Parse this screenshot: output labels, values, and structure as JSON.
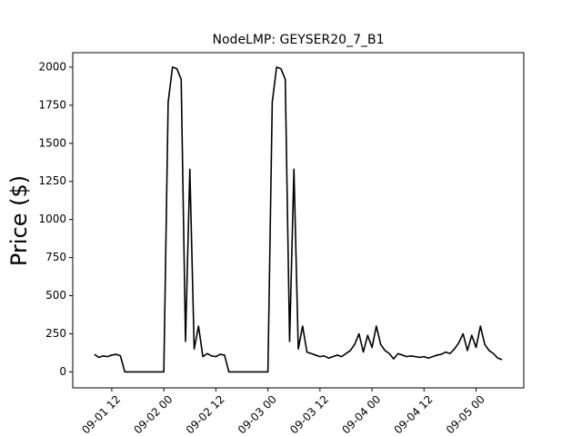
{
  "chart_data": {
    "type": "line",
    "title": "NodeLMP: GEYSER20_7_B1",
    "ylabel": "Price ($)",
    "x": [
      "09-01 08",
      "09-01 09",
      "09-01 10",
      "09-01 11",
      "09-01 12",
      "09-01 13",
      "09-01 14",
      "09-01 15",
      "09-01 16",
      "09-01 17",
      "09-01 18",
      "09-01 19",
      "09-01 20",
      "09-01 21",
      "09-01 22",
      "09-01 23",
      "09-02 00",
      "09-02 01",
      "09-02 02",
      "09-02 03",
      "09-02 04",
      "09-02 05",
      "09-02 06",
      "09-02 07",
      "09-02 08",
      "09-02 09",
      "09-02 10",
      "09-02 11",
      "09-02 12",
      "09-02 13",
      "09-02 14",
      "09-02 15",
      "09-02 16",
      "09-02 17",
      "09-02 18",
      "09-02 19",
      "09-02 20",
      "09-02 21",
      "09-02 22",
      "09-02 23",
      "09-03 00",
      "09-03 01",
      "09-03 02",
      "09-03 03",
      "09-03 04",
      "09-03 05",
      "09-03 06",
      "09-03 07",
      "09-03 08",
      "09-03 09",
      "09-03 10",
      "09-03 11",
      "09-03 12",
      "09-03 13",
      "09-03 14",
      "09-03 15",
      "09-03 16",
      "09-03 17",
      "09-03 18",
      "09-03 19",
      "09-03 20",
      "09-03 21",
      "09-03 22",
      "09-03 23",
      "09-04 00",
      "09-04 01",
      "09-04 02",
      "09-04 03",
      "09-04 04",
      "09-04 05",
      "09-04 06",
      "09-04 07",
      "09-04 08",
      "09-04 09",
      "09-04 10",
      "09-04 11",
      "09-04 12",
      "09-04 13",
      "09-04 14",
      "09-04 15",
      "09-04 16",
      "09-04 17",
      "09-04 18",
      "09-04 19",
      "09-04 20",
      "09-04 21",
      "09-04 22",
      "09-04 23",
      "09-05 00",
      "09-05 01",
      "09-05 02",
      "09-05 03",
      "09-05 04",
      "09-05 05",
      "09-05 06"
    ],
    "series": [
      {
        "color": "#000000",
        "values": [
          115,
          95,
          105,
          100,
          110,
          115,
          105,
          0,
          0,
          0,
          0,
          0,
          0,
          0,
          0,
          0,
          0,
          1770,
          2000,
          1990,
          1920,
          200,
          1330,
          150,
          300,
          100,
          120,
          105,
          100,
          115,
          110,
          0,
          0,
          0,
          0,
          0,
          0,
          0,
          0,
          0,
          0,
          1770,
          2000,
          1990,
          1920,
          200,
          1330,
          150,
          300,
          130,
          120,
          110,
          100,
          105,
          90,
          100,
          110,
          100,
          120,
          140,
          180,
          250,
          130,
          240,
          160,
          300,
          180,
          140,
          120,
          85,
          120,
          110,
          100,
          105,
          100,
          95,
          100,
          90,
          100,
          110,
          115,
          130,
          120,
          150,
          190,
          250,
          140,
          240,
          160,
          300,
          180,
          140,
          120,
          90,
          80
        ]
      }
    ],
    "xlim": [
      "09-01 03",
      "09-05 11"
    ],
    "xticks": [
      "09-01 12",
      "09-02 00",
      "09-02 12",
      "09-03 00",
      "09-03 12",
      "09-04 00",
      "09-04 12",
      "09-05 00"
    ],
    "ylim": [
      -105,
      2095
    ],
    "yticks": [
      0,
      250,
      500,
      750,
      1000,
      1250,
      1500,
      1750,
      2000
    ]
  }
}
